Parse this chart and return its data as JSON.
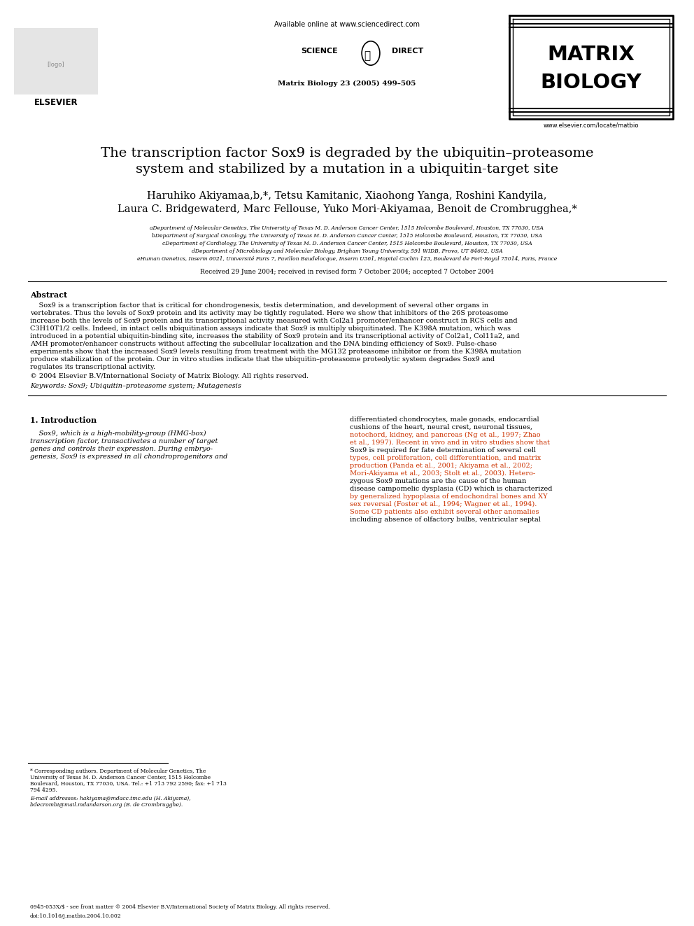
{
  "bg_color": "#ffffff",
  "header_available": "Available online at www.sciencedirect.com",
  "header_journal": "Matrix Biology 23 (2005) 499–505",
  "journal_name_line1": "MATRIX",
  "journal_name_line2": "BIOLOGY",
  "journal_url": "www.elsevier.com/locate/matbio",
  "elsevier_label": "ELSEVIER",
  "paper_title_line1": "The transcription factor Sox9 is degraded by the ubiquitin–proteasome",
  "paper_title_line2": "system and stabilized by a mutation in a ubiquitin-target site",
  "authors1": "Haruhiko Akiyamaa,b,*, Tetsu Kamitanic, Xiaohong Yanga, Roshini Kandyila,",
  "authors2": "Laura C. Bridgewaterd, Marc Fellouse, Yuko Mori-Akiyamaa, Benoit de Crombrugghea,*",
  "affil_a": "aDepartment of Molecular Genetics, The University of Texas M. D. Anderson Cancer Center, 1515 Holcombe Boulevard, Houston, TX 77030, USA",
  "affil_b": "bDepartment of Surgical Oncology, The University of Texas M. D. Anderson Cancer Center, 1515 Holcombe Boulevard, Houston, TX 77030, USA",
  "affil_c": "cDepartment of Cardiology, The University of Texas M. D. Anderson Cancer Center, 1515 Holcombe Boulevard, Houston, TX 77030, USA",
  "affil_d": "dDepartment of Microbiology and Molecular Biology, Brigham Young University, 591 WIDB, Provo, UT 84602, USA",
  "affil_e": "eHuman Genetics, Inserm 0021, Université Paris 7, Pavillon Baudelocque, Inserm U361, Hopital Cochin 123, Boulevard de Port-Royal 75014, Paris, France",
  "received": "Received 29 June 2004; received in revised form 7 October 2004; accepted 7 October 2004",
  "abstract_title": "Abstract",
  "abstract_lines": [
    "    Sox9 is a transcription factor that is critical for chondrogenesis, testis determination, and development of several other organs in",
    "vertebrates. Thus the levels of Sox9 protein and its activity may be tightly regulated. Here we show that inhibitors of the 26S proteasome",
    "increase both the levels of Sox9 protein and its transcriptional activity measured with Col2a1 promoter/enhancer construct in RCS cells and",
    "C3H10T1/2 cells. Indeed, in intact cells ubiquitination assays indicate that Sox9 is multiply ubiquitinated. The K398A mutation, which was",
    "introduced in a potential ubiquitin-binding site, increases the stability of Sox9 protein and its transcriptional activity of Col2a1, Col11a2, and",
    "AMH promoter/enhancer constructs without affecting the subcellular localization and the DNA binding efficiency of Sox9. Pulse-chase",
    "experiments show that the increased Sox9 levels resulting from treatment with the MG132 proteasome inhibitor or from the K398A mutation",
    "produce stabilization of the protein. Our in vitro studies indicate that the ubiquitin–proteasome proteolytic system degrades Sox9 and",
    "regulates its transcriptional activity."
  ],
  "copyright": "© 2004 Elsevier B.V/International Society of Matrix Biology. All rights reserved.",
  "keywords": "Keywords: Sox9; Ubiquitin–proteasome system; Mutagenesis",
  "section1_title": "1. Introduction",
  "intro_col1_lines": [
    "    Sox9, which is a high-mobility-group (HMG-box)",
    "transcription factor, transactivates a number of target",
    "genes and controls their expression. During embryo-",
    "genesis, Sox9 is expressed in all chondroprogenitors and"
  ],
  "intro_col2_lines": [
    "differentiated chondrocytes, male gonads, endocardial",
    "cushions of the heart, neural crest, neuronal tissues,",
    "notochord, kidney, and pancreas (Ng et al., 1997; Zhao",
    "et al., 1997). Recent in vivo and in vitro studies show that",
    "Sox9 is required for fate determination of several cell",
    "types, cell proliferation, cell differentiation, and matrix",
    "production (Panda et al., 2001; Akiyama et al., 2002;",
    "Mori-Akiyama et al., 2003; Stolt et al., 2003). Hetero-",
    "zygous Sox9 mutations are the cause of the human",
    "disease campomelic dysplasia (CD) which is characterized",
    "by generalized hypoplasia of endochondral bones and XY",
    "sex reversal (Foster et al., 1994; Wagner et al., 1994).",
    "Some CD patients also exhibit several other anomalies",
    "including absence of olfactory bulbs, ventricular septal"
  ],
  "footnote_lines": [
    "* Corresponding authors. Department of Molecular Genetics, The",
    "University of Texas M. D. Anderson Cancer Center, 1515 Holcombe",
    "Boulevard, Houston, TX 77030, USA. Tel.: +1 713 792 2590; fax: +1 713",
    "794 4295."
  ],
  "email_lines": [
    "E-mail addresses: hakiyama@mdacc.tmc.edu (H. Akiyama),",
    "bdecrombi@mail.mdanderson.org (B. de Crombrugghe)."
  ],
  "footer_issn": "0945-053X/$ - see front matter © 2004 Elsevier B.V/International Society of Matrix Biology. All rights reserved.",
  "footer_doi": "doi:10.1016/j.matbio.2004.10.002",
  "intro_col2_colored_lines": [
    2,
    3,
    5,
    6,
    7,
    10,
    11,
    12
  ]
}
